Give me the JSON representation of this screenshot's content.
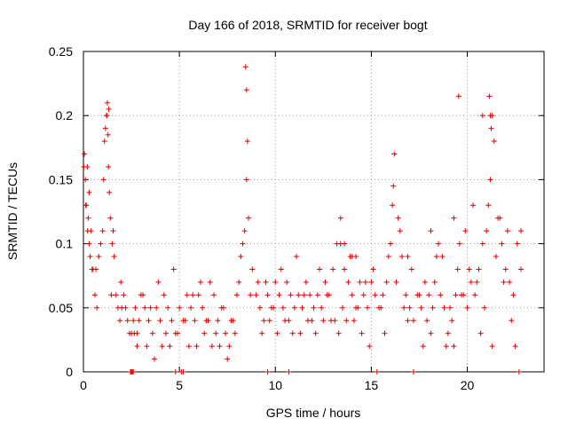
{
  "chart_data": {
    "type": "scatter",
    "title": "Day 166 of 2018, SRMTID for receiver bogt",
    "xlabel": "GPS time / hours",
    "ylabel": "SRMTID / TECUs",
    "xlim": [
      0,
      24
    ],
    "ylim": [
      0,
      0.25
    ],
    "xticks": [
      0,
      5,
      10,
      15,
      20
    ],
    "xtick_labels": [
      "0",
      "5",
      "10",
      "15",
      "20"
    ],
    "yticks": [
      0,
      0.05,
      0.1,
      0.15,
      0.2,
      0.25
    ],
    "ytick_labels": [
      "0",
      "0.05",
      "0.1",
      "0.15",
      "0.2",
      "0.25"
    ],
    "grid": true,
    "marker": "+",
    "marker_color": "#e00000",
    "series": [
      {
        "name": "SRMTID",
        "x": [
          0.05,
          0.1,
          0.15,
          0.2,
          0.25,
          0.3,
          0.35,
          0.4,
          0.5,
          0.6,
          0.7,
          0.8,
          0.9,
          1.0,
          1.05,
          1.1,
          1.15,
          1.2,
          1.25,
          1.3,
          1.35,
          1.4,
          1.5,
          1.6,
          1.7,
          1.8,
          1.9,
          2.0,
          2.1,
          2.2,
          2.3,
          2.4,
          2.5,
          2.6,
          2.7,
          2.8,
          2.9,
          3.0,
          3.2,
          3.4,
          3.6,
          3.8,
          4.0,
          4.2,
          4.4,
          4.6,
          4.8,
          5.0,
          5.2,
          5.4,
          5.6,
          5.8,
          6.0,
          6.2,
          6.4,
          6.6,
          6.8,
          7.0,
          7.2,
          7.4,
          7.6,
          7.8,
          8.0,
          8.1,
          8.2,
          8.3,
          8.4,
          8.5,
          8.6,
          8.8,
          9.0,
          9.2,
          9.4,
          9.6,
          9.8,
          10.0,
          10.2,
          10.4,
          10.6,
          10.8,
          11.0,
          11.2,
          11.4,
          11.6,
          11.8,
          12.0,
          12.2,
          12.4,
          12.6,
          12.8,
          13.0,
          13.2,
          13.4,
          13.6,
          13.8,
          14.0,
          14.2,
          14.4,
          14.6,
          14.8,
          15.0,
          15.2,
          15.4,
          15.6,
          15.8,
          16.0,
          16.1,
          16.2,
          16.4,
          16.6,
          16.8,
          17.0,
          17.2,
          17.4,
          17.6,
          17.8,
          18.0,
          18.2,
          18.4,
          18.6,
          18.8,
          19.0,
          19.2,
          19.4,
          19.5,
          19.6,
          19.8,
          20.0,
          20.2,
          20.4,
          20.6,
          20.8,
          21.0,
          21.1,
          21.2,
          21.3,
          21.4,
          21.6,
          21.8,
          22.0,
          22.2,
          22.4,
          22.6,
          22.8,
          0.02,
          0.12,
          0.22,
          0.45,
          1.22,
          1.28,
          1.32,
          2.45,
          2.55,
          5.1,
          8.45,
          8.5,
          8.55,
          16.15,
          19.55,
          21.15,
          21.2,
          21.25,
          20.8,
          0.3,
          0.65,
          1.45,
          1.55,
          1.95,
          2.65,
          3.1,
          3.5,
          3.9,
          4.3,
          4.7,
          5.3,
          5.7,
          6.1,
          6.5,
          6.9,
          7.3,
          7.7,
          8.7,
          9.1,
          9.5,
          9.9,
          10.3,
          10.7,
          11.1,
          11.5,
          11.9,
          12.3,
          12.7,
          13.1,
          13.5,
          13.9,
          14.3,
          14.7,
          15.1,
          15.5,
          15.9,
          16.3,
          16.7,
          17.1,
          17.5,
          17.9,
          18.3,
          18.7,
          19.1,
          19.7,
          20.1,
          20.5,
          20.9,
          21.5,
          21.9,
          22.3,
          22.7,
          2.5,
          2.6,
          4.8,
          5.2,
          9.6,
          10.7,
          15.3,
          17.2,
          22.8,
          13.4,
          13.6,
          14.0,
          14.2,
          16.5,
          16.9,
          18.1,
          18.5,
          19.3,
          19.9,
          20.3,
          21.7,
          22.1,
          22.5,
          2.8,
          3.3,
          3.7,
          4.1,
          4.5,
          4.9,
          5.5,
          5.9,
          6.3,
          6.7,
          7.1,
          7.5,
          7.9,
          9.3,
          9.7,
          10.1,
          10.5,
          10.9,
          11.3,
          11.7,
          12.1,
          12.5,
          12.9,
          13.3,
          13.7,
          14.1,
          14.5,
          14.9,
          15.7,
          16.9,
          17.7,
          18.1,
          18.9,
          19.3,
          20.7,
          21.3
        ],
        "y": [
          0.17,
          0.15,
          0.13,
          0.16,
          0.12,
          0.1,
          0.09,
          0.11,
          0.08,
          0.06,
          0.05,
          0.09,
          0.1,
          0.11,
          0.15,
          0.18,
          0.19,
          0.2,
          0.21,
          0.16,
          0.14,
          0.12,
          0.1,
          0.09,
          0.06,
          0.05,
          0.04,
          0.05,
          0.06,
          0.05,
          0.04,
          0.03,
          0.03,
          0.04,
          0.05,
          0.03,
          0.04,
          0.06,
          0.05,
          0.04,
          0.03,
          0.05,
          0.04,
          0.06,
          0.05,
          0.04,
          0.03,
          0.05,
          0.04,
          0.06,
          0.05,
          0.04,
          0.06,
          0.05,
          0.04,
          0.07,
          0.06,
          0.04,
          0.05,
          0.03,
          0.02,
          0.04,
          0.06,
          0.07,
          0.09,
          0.1,
          0.11,
          0.15,
          0.12,
          0.08,
          0.06,
          0.05,
          0.04,
          0.06,
          0.05,
          0.07,
          0.06,
          0.05,
          0.07,
          0.06,
          0.05,
          0.06,
          0.05,
          0.07,
          0.06,
          0.05,
          0.06,
          0.05,
          0.07,
          0.06,
          0.08,
          0.1,
          0.12,
          0.08,
          0.07,
          0.06,
          0.05,
          0.07,
          0.06,
          0.05,
          0.07,
          0.06,
          0.05,
          0.06,
          0.07,
          0.1,
          0.13,
          0.17,
          0.12,
          0.09,
          0.06,
          0.05,
          0.04,
          0.06,
          0.05,
          0.07,
          0.06,
          0.05,
          0.09,
          0.06,
          0.05,
          0.03,
          0.04,
          0.06,
          0.08,
          0.1,
          0.06,
          0.05,
          0.07,
          0.06,
          0.08,
          0.1,
          0.11,
          0.13,
          0.15,
          0.2,
          0.18,
          0.12,
          0.1,
          0.08,
          0.07,
          0.06,
          0.1,
          0.08,
          0.16,
          0.13,
          0.11,
          0.08,
          0.2,
          0.185,
          0.205,
          0.0,
          0.0,
          0.0,
          0.238,
          0.22,
          0.18,
          0.145,
          0.215,
          0.215,
          0.2,
          0.19,
          0.2,
          0.14,
          0.08,
          0.06,
          0.11,
          0.07,
          0.03,
          0.06,
          0.05,
          0.07,
          0.03,
          0.08,
          0.04,
          0.06,
          0.07,
          0.04,
          0.03,
          0.05,
          0.04,
          0.06,
          0.07,
          0.07,
          0.05,
          0.08,
          0.04,
          0.09,
          0.06,
          0.04,
          0.08,
          0.06,
          0.04,
          0.05,
          0.09,
          0.05,
          0.07,
          0.08,
          0.05,
          0.09,
          0.07,
          0.05,
          0.08,
          0.06,
          0.04,
          0.07,
          0.09,
          0.05,
          0.06,
          0.08,
          0.07,
          0.05,
          0.09,
          0.07,
          0.04,
          0.0,
          0.0,
          0.0,
          0.0,
          0.0,
          0.0,
          0.0,
          0.0,
          0.0,
          0.11,
          0.1,
          0.1,
          0.09,
          0.09,
          0.11,
          0.09,
          0.11,
          0.1,
          0.12,
          0.11,
          0.13,
          0.12,
          0.11,
          0.02,
          0.02,
          0.02,
          0.01,
          0.02,
          0.02,
          0.03,
          0.02,
          0.02,
          0.03,
          0.02,
          0.02,
          0.01,
          0.03,
          0.03,
          0.04,
          0.03,
          0.04,
          0.03,
          0.03,
          0.04,
          0.03,
          0.04,
          0.04,
          0.03,
          0.04,
          0.04,
          0.03,
          0.02,
          0.03,
          0.04,
          0.02,
          0.03,
          0.02,
          0.02,
          0.03,
          0.02
        ]
      }
    ]
  }
}
